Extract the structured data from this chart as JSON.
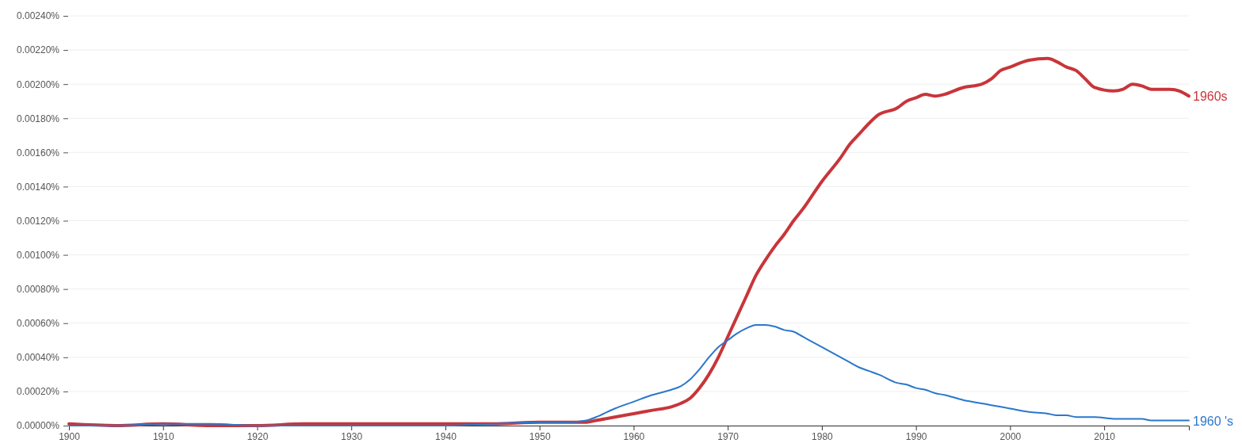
{
  "chart_data": {
    "type": "line",
    "x": [
      1900,
      1905,
      1910,
      1915,
      1920,
      1925,
      1930,
      1935,
      1940,
      1945,
      1950,
      1953,
      1955,
      1956,
      1958,
      1960,
      1962,
      1964,
      1965,
      1966,
      1967,
      1968,
      1969,
      1970,
      1971,
      1972,
      1973,
      1974,
      1975,
      1976,
      1977,
      1978,
      1980,
      1982,
      1983,
      1984,
      1985,
      1986,
      1988,
      1989,
      1990,
      1991,
      1992,
      1993,
      1995,
      1997,
      1998,
      1999,
      2000,
      2002,
      2004,
      2005,
      2006,
      2007,
      2008,
      2009,
      2011,
      2012,
      2013,
      2014,
      2015,
      2017,
      2018,
      2019
    ],
    "series": [
      {
        "name": "1960s",
        "color": "#c8353a",
        "values": [
          1e-05,
          0,
          1e-05,
          0,
          0,
          1e-05,
          1e-05,
          1e-05,
          1e-05,
          1e-05,
          2e-05,
          2e-05,
          2e-05,
          3e-05,
          5e-05,
          7e-05,
          9e-05,
          0.00011,
          0.00013,
          0.00016,
          0.00022,
          0.0003,
          0.0004,
          0.00052,
          0.00064,
          0.00076,
          0.00088,
          0.00097,
          0.00105,
          0.00112,
          0.0012,
          0.00127,
          0.00143,
          0.00157,
          0.00165,
          0.00171,
          0.00177,
          0.00182,
          0.00186,
          0.0019,
          0.00192,
          0.00194,
          0.00193,
          0.00194,
          0.00198,
          0.002,
          0.00203,
          0.00208,
          0.0021,
          0.00214,
          0.00215,
          0.00213,
          0.0021,
          0.00208,
          0.00203,
          0.00198,
          0.00196,
          0.00197,
          0.002,
          0.00199,
          0.00197,
          0.00197,
          0.00196,
          0.00193
        ]
      },
      {
        "name": "1960 's",
        "color": "#2a77cc",
        "values": [
          0,
          0,
          1e-05,
          1e-05,
          0,
          0,
          0,
          0,
          0,
          1e-05,
          2e-05,
          2e-05,
          3e-05,
          5e-05,
          0.0001,
          0.00014,
          0.00018,
          0.00021,
          0.00023,
          0.00027,
          0.00033,
          0.0004,
          0.00046,
          0.0005,
          0.00054,
          0.00057,
          0.00059,
          0.00059,
          0.00058,
          0.00056,
          0.00055,
          0.00052,
          0.00046,
          0.0004,
          0.00037,
          0.00034,
          0.00032,
          0.0003,
          0.00025,
          0.00024,
          0.00022,
          0.00021,
          0.00019,
          0.00018,
          0.00015,
          0.00013,
          0.00012,
          0.00011,
          0.0001,
          8e-05,
          7e-05,
          6e-05,
          6e-05,
          5e-05,
          5e-05,
          5e-05,
          4e-05,
          4e-05,
          4e-05,
          4e-05,
          3e-05,
          3e-05,
          3e-05,
          3e-05
        ]
      }
    ],
    "xlim": [
      1900,
      2019
    ],
    "xticks": [
      1900,
      1910,
      1920,
      1930,
      1940,
      1950,
      1960,
      1970,
      1980,
      1990,
      2000,
      2010
    ],
    "ylim": [
      0,
      0.0024
    ],
    "yticks": [
      {
        "value": 0,
        "label": "0.00000%"
      },
      {
        "value": 0.0002,
        "label": "0.00020%"
      },
      {
        "value": 0.0004,
        "label": "0.00040%"
      },
      {
        "value": 0.0006,
        "label": "0.00060%"
      },
      {
        "value": 0.0008,
        "label": "0.00080%"
      },
      {
        "value": 0.001,
        "label": "0.00100%"
      },
      {
        "value": 0.0012,
        "label": "0.00120%"
      },
      {
        "value": 0.0014,
        "label": "0.00140%"
      },
      {
        "value": 0.0016,
        "label": "0.00160%"
      },
      {
        "value": 0.0018,
        "label": "0.00180%"
      },
      {
        "value": 0.002,
        "label": "0.00200%"
      },
      {
        "value": 0.0022,
        "label": "0.00220%"
      },
      {
        "value": 0.0024,
        "label": "0.00240%"
      }
    ],
    "grid": "y",
    "legend": false,
    "marker": "none",
    "line_style": "solid"
  }
}
